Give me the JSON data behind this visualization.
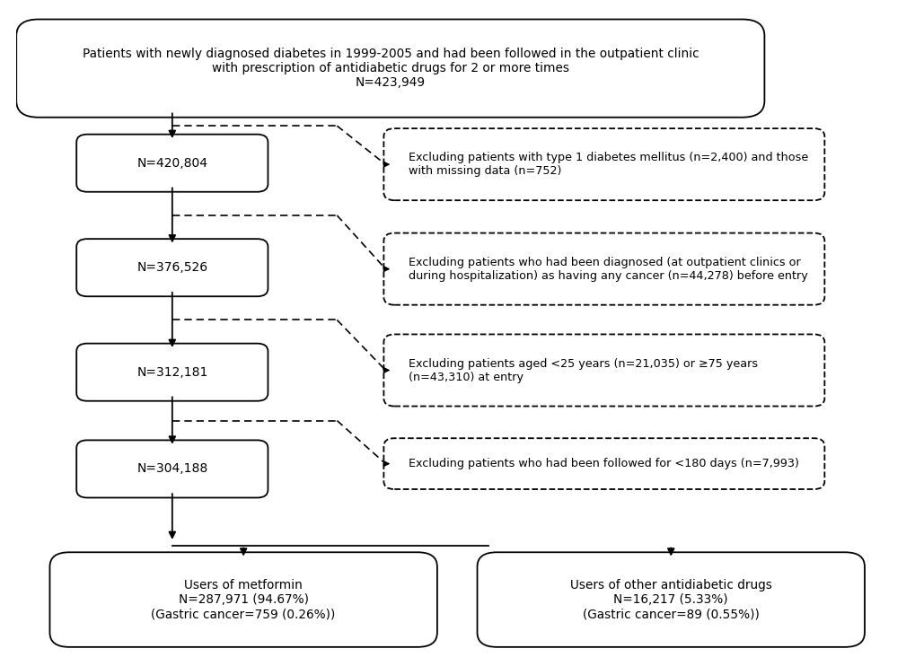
{
  "title_text": "Patients with newly diagnosed diabetes in 1999-2005 and had been followed in the outpatient clinic\nwith prescription of antidiabetic drugs for 2 or more times\nN=423,949",
  "left_boxes": [
    {
      "text": "N=420,804"
    },
    {
      "text": "N=376,526"
    },
    {
      "text": "N=312,181"
    },
    {
      "text": "N=304,188"
    }
  ],
  "right_boxes": [
    {
      "text": "Excluding patients with type 1 diabetes mellitus (n=2,400) and those\nwith missing data (n=752)"
    },
    {
      "text": "Excluding patients who had been diagnosed (at outpatient clinics or\nduring hospitalization) as having any cancer (n=44,278) before entry"
    },
    {
      "text": "Excluding patients aged <25 years (n=21,035) or ≥75 years\n(n=43,310) at entry"
    },
    {
      "text": "Excluding patients who had been followed for <180 days (n=7,993)"
    }
  ],
  "bottom_boxes": [
    {
      "text": "Users of metformin\nN=287,971 (94.67%)\n(Gastric cancer=759 (0.26%))"
    },
    {
      "text": "Users of other antidiabetic drugs\nN=16,217 (5.33%)\n(Gastric cancer=89 (0.55%))"
    }
  ],
  "bg_color": "#ffffff",
  "text_color": "#000000"
}
